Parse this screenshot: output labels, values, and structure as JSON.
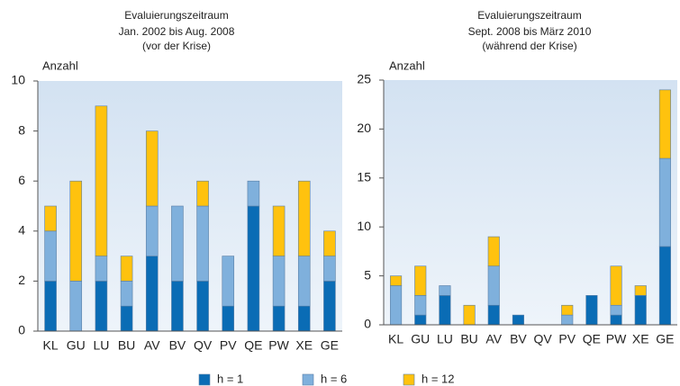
{
  "chart_data": [
    {
      "type": "bar",
      "stacked": true,
      "title": "Evaluierungszeitraum",
      "subtitle": [
        "Jan. 2002 bis Aug. 2008",
        "(vor der Krise)"
      ],
      "y_label": "Anzahl",
      "categories": [
        "KL",
        "GU",
        "LU",
        "BU",
        "AV",
        "BV",
        "QV",
        "PV",
        "QE",
        "PW",
        "XE",
        "GE"
      ],
      "series": [
        {
          "name": "h = 1",
          "color": "#0a6cb5",
          "values": [
            2,
            0,
            2,
            1,
            3,
            2,
            2,
            1,
            5,
            1,
            1,
            2
          ]
        },
        {
          "name": "h = 6",
          "color": "#7fb0dc",
          "values": [
            2,
            2,
            1,
            1,
            2,
            3,
            3,
            2,
            1,
            2,
            2,
            1
          ]
        },
        {
          "name": "h = 12",
          "color": "#ffc20e",
          "values": [
            1,
            4,
            6,
            1,
            3,
            0,
            1,
            0,
            0,
            2,
            3,
            1
          ]
        }
      ],
      "ylim": [
        0,
        10
      ],
      "yticks": [
        0,
        2,
        4,
        6,
        8,
        10
      ]
    },
    {
      "type": "bar",
      "stacked": true,
      "title": "Evaluierungszeitraum",
      "subtitle": [
        "Sept. 2008 bis März 2010",
        "(während der Krise)"
      ],
      "y_label": "Anzahl",
      "categories": [
        "KL",
        "GU",
        "LU",
        "BU",
        "AV",
        "BV",
        "QV",
        "PV",
        "QE",
        "PW",
        "XE",
        "GE"
      ],
      "series": [
        {
          "name": "h = 1",
          "color": "#0a6cb5",
          "values": [
            0,
            1,
            3,
            0,
            2,
            1,
            0,
            0,
            3,
            1,
            3,
            8
          ]
        },
        {
          "name": "h = 6",
          "color": "#7fb0dc",
          "values": [
            4,
            2,
            1,
            0,
            4,
            0,
            0,
            1,
            0,
            1,
            0,
            9
          ]
        },
        {
          "name": "h = 12",
          "color": "#ffc20e",
          "values": [
            1,
            3,
            0,
            2,
            3,
            0,
            0,
            1,
            0,
            4,
            1,
            7
          ]
        }
      ],
      "ylim": [
        0,
        25
      ],
      "yticks": [
        0,
        5,
        10,
        15,
        20,
        25
      ]
    }
  ]
}
